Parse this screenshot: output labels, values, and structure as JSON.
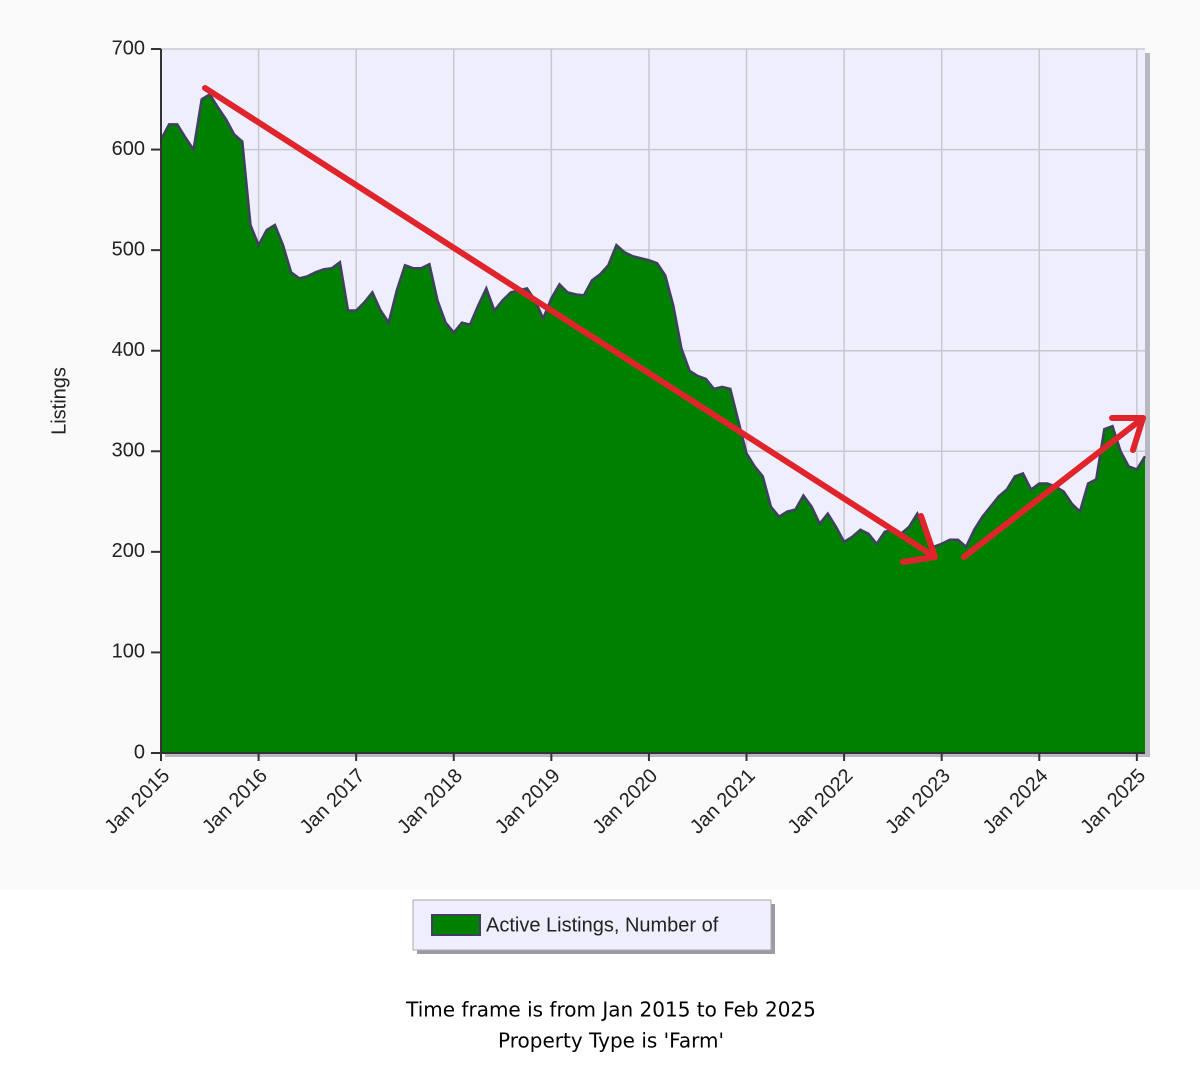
{
  "chart_data": {
    "type": "area",
    "y_label": "Listings",
    "x": [
      "2015-01",
      "2015-02",
      "2015-03",
      "2015-04",
      "2015-05",
      "2015-06",
      "2015-07",
      "2015-08",
      "2015-09",
      "2015-10",
      "2015-11",
      "2015-12",
      "2016-01",
      "2016-02",
      "2016-03",
      "2016-04",
      "2016-05",
      "2016-06",
      "2016-07",
      "2016-08",
      "2016-09",
      "2016-10",
      "2016-11",
      "2016-12",
      "2017-01",
      "2017-02",
      "2017-03",
      "2017-04",
      "2017-05",
      "2017-06",
      "2017-07",
      "2017-08",
      "2017-09",
      "2017-10",
      "2017-11",
      "2017-12",
      "2018-01",
      "2018-02",
      "2018-03",
      "2018-04",
      "2018-05",
      "2018-06",
      "2018-07",
      "2018-08",
      "2018-09",
      "2018-10",
      "2018-11",
      "2018-12",
      "2019-01",
      "2019-02",
      "2019-03",
      "2019-04",
      "2019-05",
      "2019-06",
      "2019-07",
      "2019-08",
      "2019-09",
      "2019-10",
      "2019-11",
      "2019-12",
      "2020-01",
      "2020-02",
      "2020-03",
      "2020-04",
      "2020-05",
      "2020-06",
      "2020-07",
      "2020-08",
      "2020-09",
      "2020-10",
      "2020-11",
      "2020-12",
      "2021-01",
      "2021-02",
      "2021-03",
      "2021-04",
      "2021-05",
      "2021-06",
      "2021-07",
      "2021-08",
      "2021-09",
      "2021-10",
      "2021-11",
      "2021-12",
      "2022-01",
      "2022-02",
      "2022-03",
      "2022-04",
      "2022-05",
      "2022-06",
      "2022-07",
      "2022-08",
      "2022-09",
      "2022-10",
      "2022-11",
      "2022-12",
      "2023-01",
      "2023-02",
      "2023-03",
      "2023-04",
      "2023-05",
      "2023-06",
      "2023-07",
      "2023-08",
      "2023-09",
      "2023-10",
      "2023-11",
      "2023-12",
      "2024-01",
      "2024-02",
      "2024-03",
      "2024-04",
      "2024-05",
      "2024-06",
      "2024-07",
      "2024-08",
      "2024-09",
      "2024-10",
      "2024-11",
      "2024-12",
      "2025-01",
      "2025-02"
    ],
    "series": [
      {
        "name": "Active Listings, Number of",
        "color": "#008000",
        "values": [
          610,
          625,
          625,
          612,
          600,
          650,
          655,
          642,
          630,
          615,
          608,
          525,
          505,
          520,
          525,
          505,
          478,
          472,
          474,
          478,
          481,
          482,
          488,
          440,
          440,
          448,
          458,
          440,
          428,
          460,
          485,
          482,
          482,
          486,
          450,
          428,
          418,
          428,
          426,
          445,
          462,
          440,
          450,
          458,
          460,
          462,
          450,
          432,
          452,
          466,
          458,
          456,
          455,
          470,
          476,
          485,
          505,
          498,
          494,
          492,
          490,
          487,
          475,
          445,
          402,
          380,
          375,
          372,
          362,
          364,
          362,
          330,
          298,
          285,
          275,
          245,
          235,
          240,
          242,
          256,
          245,
          228,
          238,
          225,
          210,
          215,
          222,
          218,
          208,
          220,
          222,
          218,
          225,
          238,
          218,
          205,
          208,
          212,
          212,
          205,
          222,
          235,
          245,
          255,
          262,
          275,
          278,
          262,
          268,
          268,
          265,
          260,
          248,
          240,
          268,
          272,
          322,
          325,
          300,
          285,
          282,
          295
        ]
      }
    ],
    "xlim": [
      "2015-01",
      "2025-02"
    ],
    "xticks": [
      {
        "value": "2015-01",
        "label": "Jan 2015"
      },
      {
        "value": "2016-01",
        "label": "Jan 2016"
      },
      {
        "value": "2017-01",
        "label": "Jan 2017"
      },
      {
        "value": "2018-01",
        "label": "Jan 2018"
      },
      {
        "value": "2019-01",
        "label": "Jan 2019"
      },
      {
        "value": "2020-01",
        "label": "Jan 2020"
      },
      {
        "value": "2021-01",
        "label": "Jan 2021"
      },
      {
        "value": "2022-01",
        "label": "Jan 2022"
      },
      {
        "value": "2023-01",
        "label": "Jan 2023"
      },
      {
        "value": "2024-01",
        "label": "Jan 2024"
      },
      {
        "value": "2025-01",
        "label": "Jan 2025"
      }
    ],
    "ylim": [
      0,
      700
    ],
    "yticks": [
      0,
      100,
      200,
      300,
      400,
      500,
      600,
      700
    ],
    "grid": true,
    "legend": "bottom",
    "notes": [
      "Time frame is from Jan 2015 to Feb 2025",
      "Property Type is 'Farm'"
    ]
  }
}
